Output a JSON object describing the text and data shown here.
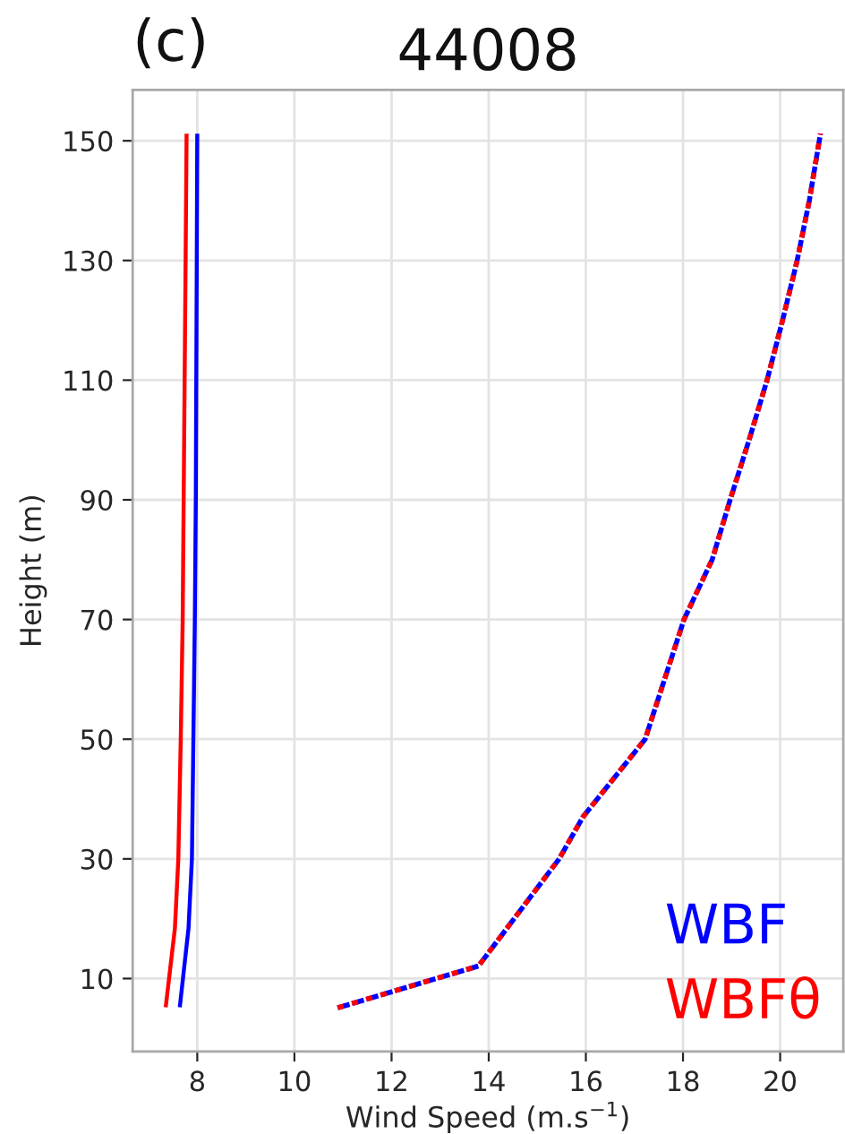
{
  "chart_data": {
    "type": "line",
    "title": "44008",
    "annotations": [
      "(c)"
    ],
    "xlabel": "Wind Speed (m.s$^{−1}$)",
    "ylabel": "Height (m)",
    "xlim": [
      6.67,
      21.3
    ],
    "xticks": [
      8,
      10,
      12,
      14,
      16,
      18,
      20
    ],
    "ylim": [
      -2.2,
      158.5
    ],
    "yticks": [
      10,
      30,
      50,
      70,
      90,
      110,
      130,
      150
    ],
    "grid": true,
    "legend": "bottom right",
    "series": [
      {
        "name": "WBF",
        "color": "#0000ff",
        "line_style": "solid",
        "x": [
          7.64,
          7.82,
          7.89,
          7.92,
          7.95,
          7.97,
          7.98,
          7.99,
          8.0
        ],
        "values": [
          5.2,
          18.4,
          30,
          50,
          70,
          90,
          110,
          130,
          151.2
        ]
      },
      {
        "name": "WBFθ",
        "color": "#ff0000",
        "line_style": "solid",
        "x": [
          7.35,
          7.54,
          7.61,
          7.66,
          7.7,
          7.72,
          7.74,
          7.76,
          7.78
        ],
        "values": [
          5.2,
          18.4,
          30,
          50,
          70,
          90,
          110,
          130,
          151.2
        ]
      },
      {
        "color": "#0000ff",
        "line_style": "dashed",
        "x": [
          10.89,
          13.79,
          15.45,
          15.94,
          17.22,
          18.02,
          18.6,
          18.97,
          19.36,
          19.73,
          20.05,
          20.35,
          20.6,
          20.83
        ],
        "values": [
          5.1,
          12.1,
          30,
          37,
          50,
          70,
          80,
          90,
          100,
          110,
          120,
          130,
          140,
          151.2
        ]
      },
      {
        "color": "#ff0000",
        "line_style": "dashed",
        "x": [
          10.89,
          13.79,
          15.45,
          15.94,
          17.22,
          18.02,
          18.6,
          18.97,
          19.36,
          19.73,
          20.05,
          20.35,
          20.6,
          20.83
        ],
        "values": [
          5.1,
          12.1,
          30,
          37,
          50,
          70,
          80,
          90,
          100,
          110,
          120,
          130,
          140,
          151.2
        ]
      }
    ]
  }
}
